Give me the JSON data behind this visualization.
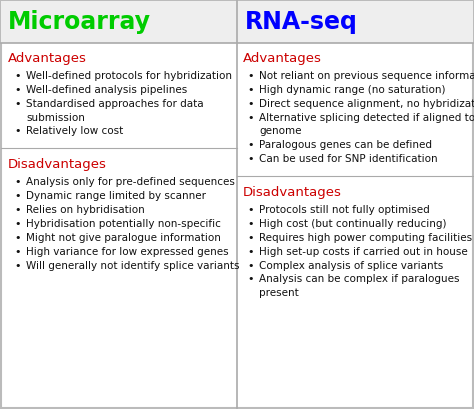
{
  "background_color": "#ffffff",
  "border_color": "#bbbbbb",
  "divider_color": "#aaaaaa",
  "col1_header": "Microarray",
  "col2_header": "RNA-seq",
  "col1_header_color": "#00cc00",
  "col2_header_color": "#0000ff",
  "header_fontsize": 17,
  "section_color": "#cc0000",
  "section_fontsize": 9.5,
  "bullet_color": "#111111",
  "bullet_fontsize": 7.5,
  "col1_adv_title": "Advantages",
  "col1_adv_bullets": [
    "Well-defined protocols for hybridization",
    "Well-defined analysis pipelines",
    "Standardised approaches for data\nsubmission",
    "Relatively low cost"
  ],
  "col1_dis_title": "Disadvantages",
  "col1_dis_bullets": [
    "Analysis only for pre-defined sequences",
    "Dynamic range limited by scanner",
    "Relies on hybridisation",
    "Hybridisation potentially non-specific",
    "Might not give paralogue information",
    "High variance for low expressed genes",
    "Will generally not identify splice variants"
  ],
  "col2_adv_title": "Advantages",
  "col2_adv_bullets": [
    "Not reliant on previous sequence information",
    "High dynamic range (no saturation)",
    "Direct sequence alignment, no hybridization",
    "Alternative splicing detected if aligned to\ngenome",
    "Paralogous genes can be defined",
    "Can be used for SNP identification"
  ],
  "col2_dis_title": "Disadvantages",
  "col2_dis_bullets": [
    "Protocols still not fully optimised",
    "High cost (but continually reducing)",
    "Requires high power computing facilities",
    "High set-up costs if carried out in house",
    "Complex analysis of splice variants",
    "Analysis can be complex if paralogues\npresent"
  ]
}
